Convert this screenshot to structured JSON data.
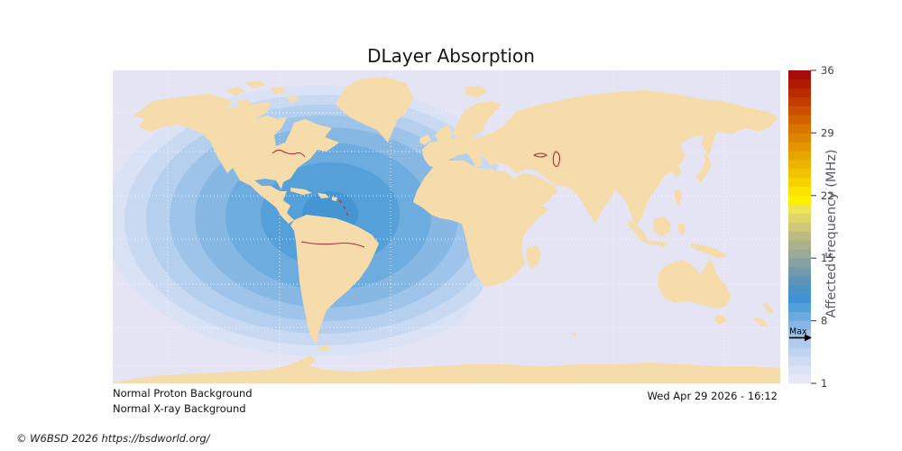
{
  "title": "DLayer Absorption",
  "status": {
    "proton": "Normal Proton Background",
    "xray": "Normal X-ray Background"
  },
  "timestamp": "Wed Apr 29 2026 - 16:12",
  "copyright": "© W6BSD 2026 https://bsdworld.org/",
  "colorbar": {
    "label": "Affected Frequency (MHz)",
    "ticks": [
      36,
      29,
      22,
      15,
      8,
      1
    ],
    "range": [
      1,
      36
    ],
    "max_marker": {
      "label": "Max",
      "value": 6.2
    },
    "segments": [
      "#e8e7f8",
      "#dde1f6",
      "#cfdaf3",
      "#c0d3f0",
      "#b0cbed",
      "#9dc2e9",
      "#86b7e4",
      "#6cabdf",
      "#51a0da",
      "#3f92d4",
      "#4c94c6",
      "#5f94b8",
      "#7399ac",
      "#87a0a2",
      "#9aab95",
      "#aab28b",
      "#bcbb82",
      "#cdc778",
      "#ded569",
      "#eee45a",
      "#fbf000",
      "#fae300",
      "#f6d200",
      "#f0c400",
      "#ecb400",
      "#e7a500",
      "#e29500",
      "#dd8500",
      "#d87400",
      "#d26200",
      "#cb5000",
      "#c43d00",
      "#bb2a00",
      "#b11a02",
      "#a50e08"
    ]
  },
  "map": {
    "ocean_color": "#e5e4f4",
    "land_color": "#f7dcab",
    "coast_color": "#b02a38",
    "grid_color": "#ffffff",
    "bands": [
      {
        "color": "#dae2f5"
      },
      {
        "color": "#c9d9f1"
      },
      {
        "color": "#b5cfee"
      },
      {
        "color": "#9fc4ea"
      },
      {
        "color": "#87b8e4"
      },
      {
        "color": "#6cacdf"
      },
      {
        "color": "#55a0d9"
      },
      {
        "color": "#4595d3"
      }
    ]
  },
  "chart_data": {
    "type": "heatmap",
    "title": "DLayer Absorption",
    "colorbar_label": "Affected Frequency (MHz)",
    "colorbar_ticks": [
      36,
      29,
      22,
      15,
      8,
      1
    ],
    "colorbar_range_mhz": [
      1,
      36
    ],
    "max_affected_frequency_mhz": 6.2,
    "absorption_region": "concentric contour bands centered over the Caribbean / northern South America, covering the Americas and the Atlantic, fading at a day-night terminator line crossing Scandinavia and northeast Africa",
    "annotations": [
      "Normal Proton Background",
      "Normal X-ray Background",
      "Wed Apr 29 2026 - 16:12",
      "© W6BSD 2026 https://bsdworld.org/"
    ]
  }
}
